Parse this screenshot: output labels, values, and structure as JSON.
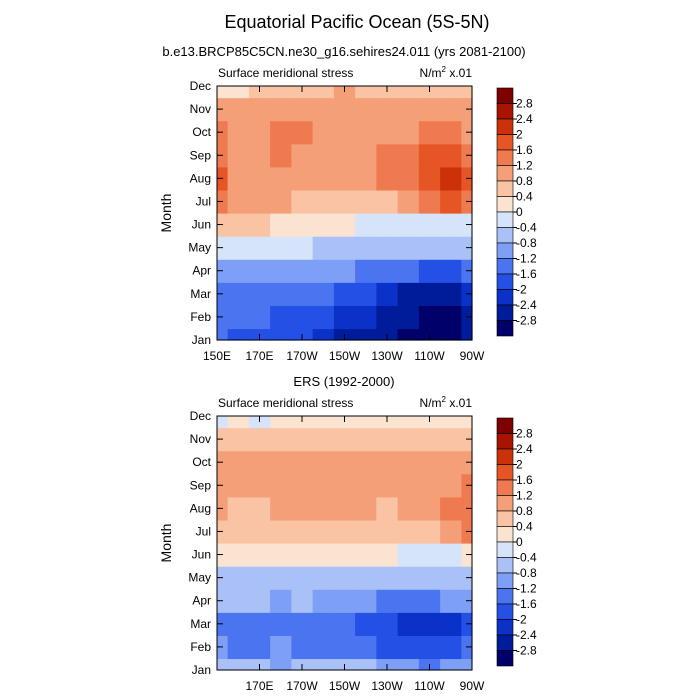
{
  "figure": {
    "title": "Equatorial Pacific Ocean (5S-5N)"
  },
  "chart_data": [
    {
      "type": "heatmap",
      "title": "b.e13.BRCP85C5CN.ne30_g16.sehires24.011 (yrs 2081-2100)",
      "left_label": "Surface meridional stress",
      "right_label_base": "N/m",
      "right_label_sup": "2",
      "right_label_tail": " x.01",
      "xlabel": "",
      "ylabel": "Month",
      "x_ticks": [
        "150E",
        "170E",
        "170W",
        "150W",
        "130W",
        "110W",
        "90W"
      ],
      "y_ticks": [
        "Jan",
        "Feb",
        "Mar",
        "Apr",
        "May",
        "Jun",
        "Jul",
        "Aug",
        "Sep",
        "Oct",
        "Nov",
        "Dec"
      ],
      "xlim_lon_east": [
        150,
        270
      ],
      "ylim_month": [
        1,
        12
      ],
      "values": [
        [
          -1.6,
          -1.7,
          -1.7,
          -1.8,
          -2.0,
          -2.2,
          -2.5,
          -2.7,
          -2.8,
          -2.9,
          -2.9,
          -2.9,
          -2.8
        ],
        [
          -1.5,
          -1.6,
          -1.6,
          -1.7,
          -1.9,
          -2.0,
          -2.2,
          -2.4,
          -2.6,
          -2.8,
          -2.9,
          -2.9,
          -2.7
        ],
        [
          -1.3,
          -1.3,
          -1.3,
          -1.4,
          -1.5,
          -1.6,
          -1.8,
          -2.0,
          -2.3,
          -2.5,
          -2.6,
          -2.6,
          -2.4
        ],
        [
          -0.9,
          -0.9,
          -0.9,
          -1.0,
          -1.0,
          -1.1,
          -1.2,
          -1.3,
          -1.5,
          -1.6,
          -1.7,
          -1.7,
          -1.6
        ],
        [
          -0.3,
          -0.3,
          -0.3,
          -0.4,
          -0.4,
          -0.5,
          -0.5,
          -0.6,
          -0.7,
          -0.8,
          -0.8,
          -0.8,
          -0.7
        ],
        [
          0.6,
          0.5,
          0.4,
          0.3,
          0.2,
          0.1,
          0.0,
          -0.1,
          -0.1,
          -0.2,
          -0.2,
          -0.2,
          -0.2
        ],
        [
          1.5,
          1.0,
          0.9,
          0.8,
          0.7,
          0.6,
          0.6,
          0.6,
          0.7,
          0.9,
          1.2,
          1.8,
          1.3
        ],
        [
          1.7,
          1.1,
          1.0,
          0.9,
          0.8,
          0.8,
          0.8,
          0.9,
          1.2,
          1.5,
          1.8,
          2.0,
          1.6
        ],
        [
          1.4,
          1.1,
          1.1,
          1.2,
          1.1,
          1.1,
          1.0,
          1.1,
          1.3,
          1.4,
          1.6,
          1.6,
          1.4
        ],
        [
          1.2,
          1.1,
          1.1,
          1.2,
          1.2,
          1.1,
          1.0,
          1.0,
          1.1,
          1.1,
          1.2,
          1.2,
          1.1
        ],
        [
          1.0,
          1.0,
          1.0,
          1.0,
          1.0,
          1.0,
          1.0,
          0.9,
          0.9,
          0.9,
          0.9,
          1.0,
          0.9
        ],
        [
          0.0,
          0.2,
          0.4,
          0.6,
          0.7,
          0.7,
          0.8,
          0.7,
          0.6,
          0.5,
          0.5,
          0.5,
          0.4
        ]
      ],
      "colorbar_labels": [
        "2.8",
        "2.4",
        "2",
        "1.6",
        "1.2",
        "0.8",
        "0.4",
        "0",
        "-0.4",
        "-0.8",
        "-1.2",
        "-1.6",
        "-2",
        "-2.4",
        "-2.8"
      ]
    },
    {
      "type": "heatmap",
      "title": "ERS (1992-2000)",
      "left_label": "Surface meridional stress",
      "right_label_base": "N/m",
      "right_label_sup": "2",
      "right_label_tail": " x.01",
      "xlabel": "",
      "ylabel": "Month",
      "x_ticks": [
        "170E",
        "170W",
        "150W",
        "130W",
        "110W",
        "90W"
      ],
      "y_ticks": [
        "Jan",
        "Feb",
        "Mar",
        "Apr",
        "May",
        "Jun",
        "Jul",
        "Aug",
        "Sep",
        "Oct",
        "Nov",
        "Dec"
      ],
      "xlim_lon_east": [
        150,
        270
      ],
      "ylim_month": [
        1,
        12
      ],
      "values": [
        [
          -0.6,
          -0.7,
          -0.8,
          -0.9,
          -0.8,
          -0.7,
          -0.7,
          -0.8,
          -1.0,
          -1.2,
          -1.3,
          -1.2,
          -1.0
        ],
        [
          -1.2,
          -1.4,
          -1.3,
          -1.2,
          -1.3,
          -1.3,
          -1.4,
          -1.6,
          -1.8,
          -1.9,
          -1.9,
          -1.8,
          -1.5
        ],
        [
          -1.3,
          -1.6,
          -1.5,
          -1.4,
          -1.4,
          -1.4,
          -1.5,
          -1.7,
          -1.9,
          -2.1,
          -2.2,
          -2.1,
          -1.8
        ],
        [
          -0.6,
          -0.8,
          -0.8,
          -0.9,
          -0.8,
          -1.0,
          -1.1,
          -1.2,
          -1.4,
          -1.3,
          -1.3,
          -1.2,
          -1.1
        ],
        [
          -0.6,
          -0.7,
          -0.7,
          -0.7,
          -0.6,
          -0.6,
          -0.6,
          -0.6,
          -0.7,
          -0.7,
          -0.6,
          -0.5,
          -0.5
        ],
        [
          0.2,
          0.1,
          0.1,
          0.1,
          0.1,
          0.1,
          0.1,
          0.1,
          0.0,
          -0.2,
          -0.3,
          -0.2,
          0.0
        ],
        [
          0.7,
          0.5,
          0.4,
          0.4,
          0.5,
          0.5,
          0.5,
          0.6,
          0.6,
          0.6,
          0.7,
          0.9,
          1.3
        ],
        [
          0.8,
          0.6,
          0.7,
          0.8,
          0.8,
          0.8,
          0.9,
          0.8,
          0.7,
          0.8,
          0.9,
          1.2,
          1.4
        ],
        [
          1.0,
          0.8,
          0.8,
          0.8,
          0.9,
          0.9,
          0.9,
          0.9,
          0.9,
          0.9,
          1.0,
          1.0,
          1.2
        ],
        [
          0.8,
          0.8,
          0.9,
          0.8,
          0.8,
          0.9,
          0.8,
          0.8,
          0.9,
          0.8,
          0.8,
          0.8,
          1.0
        ],
        [
          0.6,
          0.5,
          0.7,
          0.6,
          0.5,
          0.6,
          0.5,
          0.6,
          0.6,
          0.5,
          0.5,
          0.5,
          0.6
        ],
        [
          -0.1,
          0.0,
          -0.2,
          0.2,
          0.3,
          0.3,
          0.3,
          0.3,
          0.3,
          0.3,
          0.2,
          0.2,
          0.3
        ]
      ],
      "colorbar_labels": [
        "2.8",
        "2.4",
        "2",
        "1.6",
        "1.2",
        "0.8",
        "0.4",
        "0",
        "-0.4",
        "-0.8",
        "-1.2",
        "-1.6",
        "-2",
        "-2.4",
        "-2.8"
      ]
    }
  ],
  "colors": {
    "levels": [
      -2.8,
      -2.4,
      -2.0,
      -1.6,
      -1.2,
      -0.8,
      -0.4,
      0,
      0.4,
      0.8,
      1.2,
      1.6,
      2.0,
      2.4,
      2.8
    ],
    "fills": [
      "#00006a",
      "#001c9a",
      "#0a32c8",
      "#2450e6",
      "#4a74f0",
      "#7d9ff5",
      "#a9c1f7",
      "#d6e4f9",
      "#fbe3d2",
      "#f9c3a4",
      "#f59f78",
      "#ef7a50",
      "#e55526",
      "#cc3209",
      "#a81302",
      "#7e0000"
    ]
  }
}
